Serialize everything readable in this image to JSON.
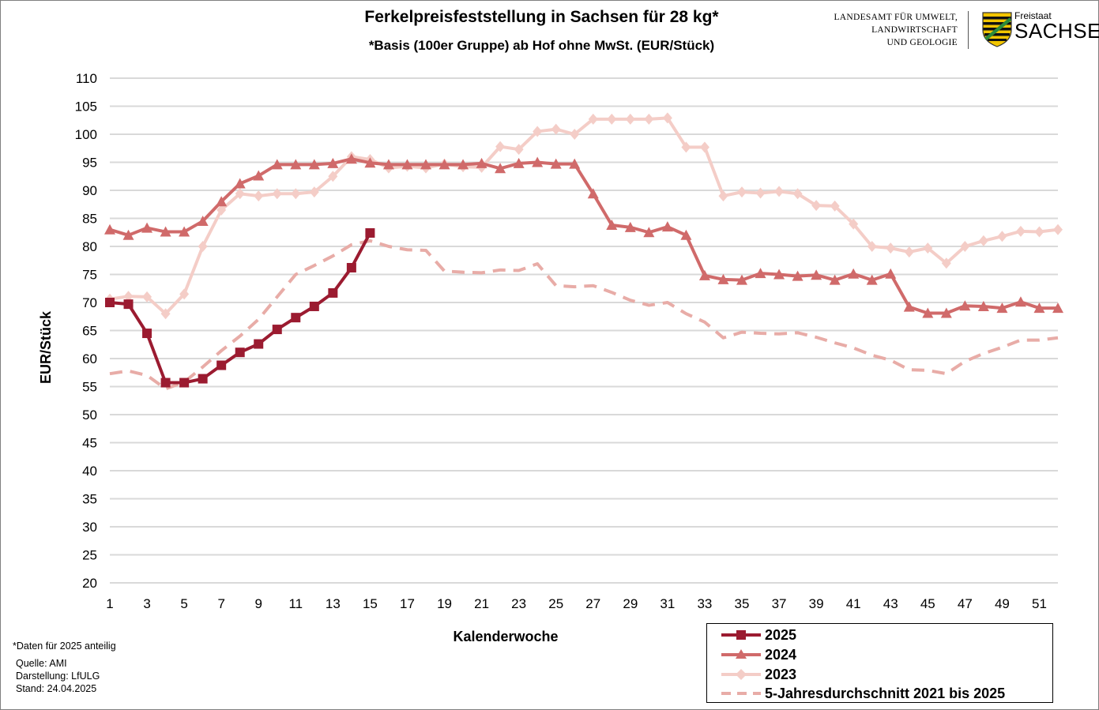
{
  "header": {
    "title": "Ferkelpreisfeststellung in Sachsen für 28 kg*",
    "subtitle": "*Basis (100er Gruppe) ab Hof ohne MwSt. (EUR/Stück)"
  },
  "logo": {
    "agency_lines": [
      "LANDESAMT FÜR UMWELT,",
      "LANDWIRTSCHAFT",
      "UND GEOLOGIE"
    ],
    "state_small": "Freistaat",
    "state_big": "SACHSEN",
    "coat_of_arms": "saxony-coat-of-arms-icon",
    "colors": {
      "green": "#2e8b3a",
      "yellow": "#f2c500",
      "black": "#111111"
    }
  },
  "notes": {
    "partial": "*Daten für 2025 anteilig",
    "source": "Quelle:  AMI",
    "made_by": "Darstellung:  LfULG",
    "as_of": "Stand:  24.04.2025"
  },
  "chart_data": {
    "type": "line",
    "xlabel": "Kalenderwoche",
    "ylabel": "EUR/Stück",
    "xlim": [
      1,
      52
    ],
    "ylim": [
      20,
      110
    ],
    "ystep": 5,
    "xticks": [
      1,
      3,
      5,
      7,
      9,
      11,
      13,
      15,
      17,
      19,
      21,
      23,
      25,
      27,
      29,
      31,
      33,
      35,
      37,
      39,
      41,
      43,
      45,
      47,
      49,
      51
    ],
    "grid": true,
    "legend_position": "bottom-right",
    "series": [
      {
        "name": "2025",
        "color": "#9b1b30",
        "marker": "square",
        "style": "solid",
        "x": [
          1,
          2,
          3,
          4,
          5,
          6,
          7,
          8,
          9,
          10,
          11,
          12,
          13,
          14,
          15
        ],
        "values": [
          70,
          69.7,
          64.5,
          55.7,
          55.7,
          56.4,
          58.8,
          61.1,
          62.6,
          65.2,
          67.3,
          69.3,
          71.7,
          76.2,
          82.4
        ]
      },
      {
        "name": "2024",
        "color": "#d06a6a",
        "marker": "triangle",
        "style": "solid",
        "x": [
          1,
          2,
          3,
          4,
          5,
          6,
          7,
          8,
          9,
          10,
          11,
          12,
          13,
          14,
          15,
          16,
          17,
          18,
          19,
          20,
          21,
          22,
          23,
          24,
          25,
          26,
          27,
          28,
          29,
          30,
          31,
          32,
          33,
          34,
          35,
          36,
          37,
          38,
          39,
          40,
          41,
          42,
          43,
          44,
          45,
          46,
          47,
          48,
          49,
          50,
          51,
          52
        ],
        "values": [
          83,
          82,
          83.3,
          82.6,
          82.6,
          84.5,
          88,
          91.2,
          92.6,
          94.6,
          94.6,
          94.6,
          94.8,
          95.6,
          94.9,
          94.6,
          94.6,
          94.6,
          94.6,
          94.6,
          94.8,
          93.9,
          94.8,
          95,
          94.7,
          94.7,
          89.4,
          83.8,
          83.4,
          82.5,
          83.5,
          82,
          74.8,
          74.1,
          74,
          75.2,
          75,
          74.7,
          74.9,
          74,
          75.1,
          74,
          75.1,
          69.2,
          68.1,
          68.1,
          69.4,
          69.3,
          69,
          70.1,
          69,
          69
        ]
      },
      {
        "name": "2023",
        "color": "#f4cdc7",
        "marker": "diamond",
        "style": "solid",
        "x": [
          1,
          2,
          3,
          4,
          5,
          6,
          7,
          8,
          9,
          10,
          11,
          12,
          13,
          14,
          15,
          16,
          17,
          18,
          19,
          20,
          21,
          22,
          23,
          24,
          25,
          26,
          27,
          28,
          29,
          30,
          31,
          32,
          33,
          34,
          35,
          36,
          37,
          38,
          39,
          40,
          41,
          42,
          43,
          44,
          45,
          46,
          47,
          48,
          49,
          50,
          51,
          52
        ],
        "values": [
          70.6,
          71.1,
          71,
          68,
          71.5,
          80,
          86.5,
          89.4,
          89,
          89.4,
          89.4,
          89.7,
          92.5,
          96,
          95.5,
          94,
          94.3,
          94,
          94.7,
          94.2,
          94.1,
          97.8,
          97.3,
          100.5,
          100.9,
          100,
          102.7,
          102.7,
          102.7,
          102.7,
          102.9,
          97.7,
          97.7,
          89,
          89.7,
          89.5,
          89.8,
          89.4,
          87.3,
          87.2,
          84,
          80,
          79.7,
          79,
          79.7,
          77,
          80,
          81,
          81.8,
          82.7,
          82.6,
          83
        ]
      },
      {
        "name": "5-Jahresdurchschnitt 2021 bis 2025",
        "color": "#e8aca7",
        "marker": "none",
        "style": "dashed",
        "x": [
          1,
          2,
          3,
          4,
          5,
          6,
          7,
          8,
          9,
          10,
          11,
          12,
          13,
          14,
          15,
          16,
          17,
          18,
          19,
          20,
          21,
          22,
          23,
          24,
          25,
          26,
          27,
          28,
          29,
          30,
          31,
          32,
          33,
          34,
          35,
          36,
          37,
          38,
          39,
          40,
          41,
          42,
          43,
          44,
          45,
          46,
          47,
          48,
          49,
          50,
          51,
          52
        ],
        "values": [
          57.3,
          57.8,
          57,
          54.6,
          55.8,
          58.5,
          61.4,
          64,
          67,
          71,
          75,
          76.6,
          78.3,
          80.3,
          81,
          80,
          79.4,
          79.3,
          75.6,
          75.4,
          75.3,
          75.8,
          75.7,
          76.9,
          73,
          72.8,
          73,
          71.8,
          70.4,
          69.5,
          70,
          68,
          66.5,
          63.7,
          64.7,
          64.5,
          64.4,
          64.6,
          63.8,
          62.8,
          61.9,
          60.6,
          59.7,
          58,
          57.9,
          57.3,
          59.5,
          60.9,
          62,
          63.3,
          63.3,
          63.7
        ]
      }
    ]
  }
}
